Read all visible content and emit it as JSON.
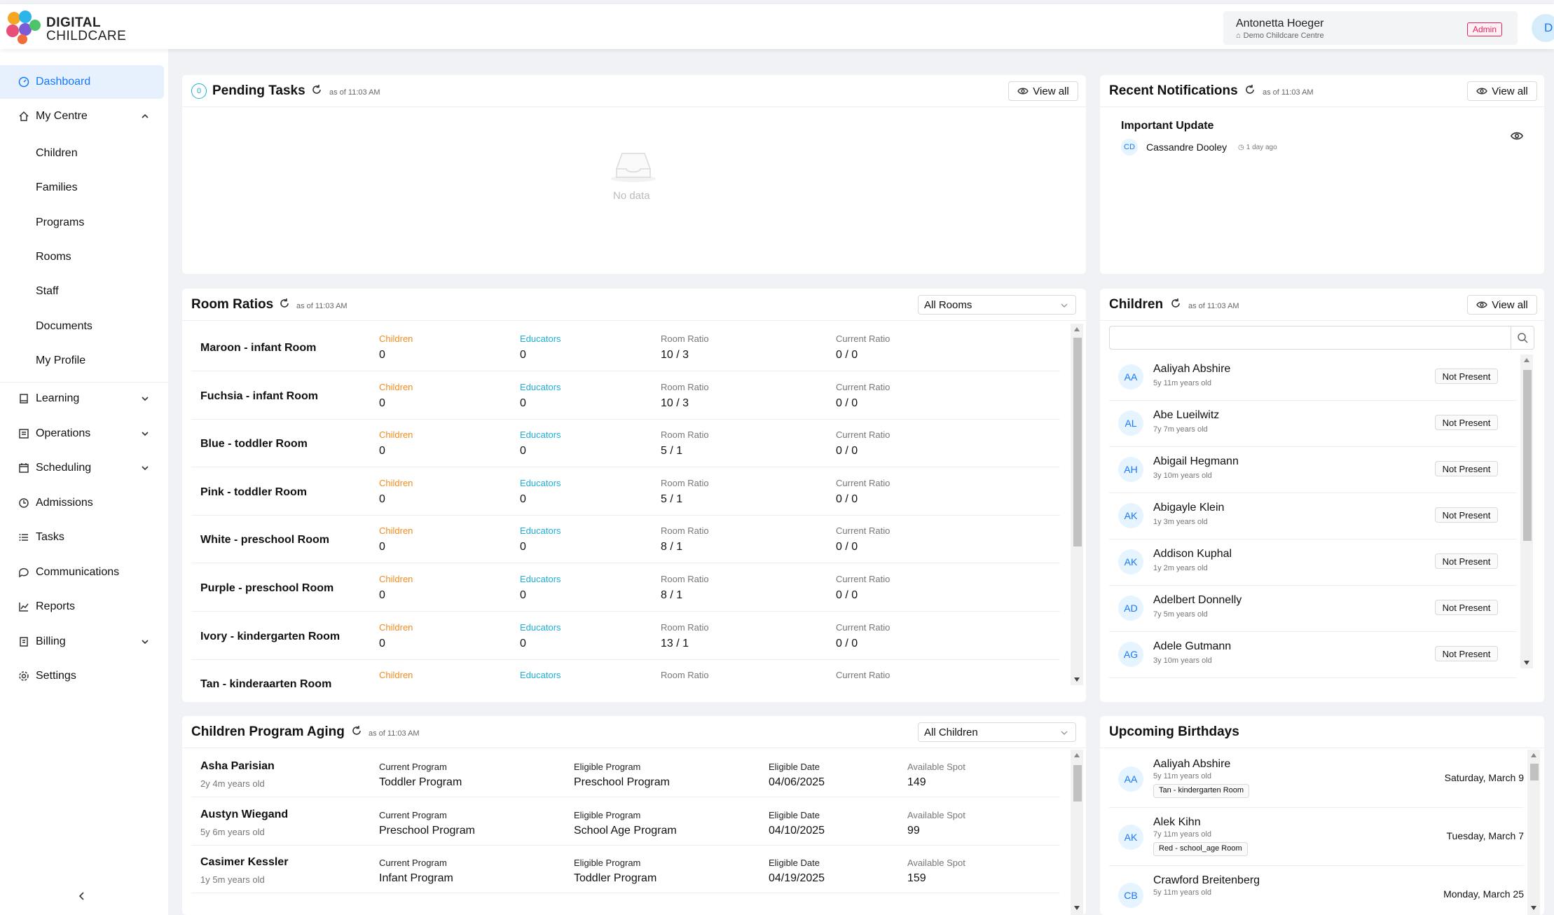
{
  "brand": {
    "line1": "DIGITAL",
    "line2": "CHILDCARE"
  },
  "user": {
    "name": "Antonetta Hoeger",
    "centre": "Demo Childcare Centre",
    "role": "Admin",
    "avatar_initial": "D"
  },
  "sidebar": {
    "items": [
      {
        "label": "Dashboard",
        "icon": "dashboard-icon"
      },
      {
        "label": "My Centre",
        "icon": "home-icon"
      },
      {
        "label": "Learning",
        "icon": "book-icon"
      },
      {
        "label": "Operations",
        "icon": "operations-icon"
      },
      {
        "label": "Scheduling",
        "icon": "calendar-icon"
      },
      {
        "label": "Admissions",
        "icon": "admissions-icon"
      },
      {
        "label": "Tasks",
        "icon": "list-icon"
      },
      {
        "label": "Communications",
        "icon": "chat-icon"
      },
      {
        "label": "Reports",
        "icon": "chart-icon"
      },
      {
        "label": "Billing",
        "icon": "billing-icon"
      },
      {
        "label": "Settings",
        "icon": "settings-icon"
      }
    ],
    "subitems": [
      "Children",
      "Families",
      "Programs",
      "Rooms",
      "Staff",
      "Documents",
      "My Profile"
    ]
  },
  "pending": {
    "title": "Pending Tasks",
    "count": "0",
    "asof": "as of 11:03 AM",
    "view_all": "View all",
    "empty": "No data"
  },
  "notifications": {
    "title": "Recent Notifications",
    "asof": "as of 11:03 AM",
    "view_all": "View all",
    "items": [
      {
        "title": "Important Update",
        "initials": "CD",
        "author": "Cassandre Dooley",
        "time": "1 day ago"
      }
    ]
  },
  "rooms": {
    "title": "Room Ratios",
    "asof": "as of 11:03 AM",
    "filter": "All Rooms",
    "labels": {
      "children": "Children",
      "educators": "Educators",
      "room_ratio": "Room Ratio",
      "current_ratio": "Current Ratio"
    },
    "rows": [
      {
        "name": "Maroon - infant Room",
        "children": "0",
        "educators": "0",
        "room_ratio": "10 / 3",
        "current_ratio": "0 / 0"
      },
      {
        "name": "Fuchsia - infant Room",
        "children": "0",
        "educators": "0",
        "room_ratio": "10 / 3",
        "current_ratio": "0 / 0"
      },
      {
        "name": "Blue - toddler Room",
        "children": "0",
        "educators": "0",
        "room_ratio": "5 / 1",
        "current_ratio": "0 / 0"
      },
      {
        "name": "Pink - toddler Room",
        "children": "0",
        "educators": "0",
        "room_ratio": "5 / 1",
        "current_ratio": "0 / 0"
      },
      {
        "name": "White - preschool Room",
        "children": "0",
        "educators": "0",
        "room_ratio": "8 / 1",
        "current_ratio": "0 / 0"
      },
      {
        "name": "Purple - preschool Room",
        "children": "0",
        "educators": "0",
        "room_ratio": "8 / 1",
        "current_ratio": "0 / 0"
      },
      {
        "name": "Ivory - kindergarten Room",
        "children": "0",
        "educators": "0",
        "room_ratio": "13 / 1",
        "current_ratio": "0 / 0"
      },
      {
        "name": "Tan - kinderaarten Room",
        "children": "",
        "educators": "",
        "room_ratio": "",
        "current_ratio": ""
      }
    ]
  },
  "children": {
    "title": "Children",
    "asof": "as of 11:03 AM",
    "view_all": "View all",
    "search_placeholder": "",
    "rows": [
      {
        "initials": "AA",
        "name": "Aaliyah Abshire",
        "age": "5y 11m years old",
        "status": "Not Present"
      },
      {
        "initials": "AL",
        "name": "Abe Lueilwitz",
        "age": "7y 7m years old",
        "status": "Not Present"
      },
      {
        "initials": "AH",
        "name": "Abigail Hegmann",
        "age": "3y 10m years old",
        "status": "Not Present"
      },
      {
        "initials": "AK",
        "name": "Abigayle Klein",
        "age": "1y 3m years old",
        "status": "Not Present"
      },
      {
        "initials": "AK",
        "name": "Addison Kuphal",
        "age": "1y 2m years old",
        "status": "Not Present"
      },
      {
        "initials": "AD",
        "name": "Adelbert Donnelly",
        "age": "7y 5m years old",
        "status": "Not Present"
      },
      {
        "initials": "AG",
        "name": "Adele Gutmann",
        "age": "3y 10m years old",
        "status": "Not Present"
      }
    ]
  },
  "aging": {
    "title": "Children Program Aging",
    "asof": "as of 11:03 AM",
    "filter": "All Children",
    "labels": {
      "current": "Current Program",
      "eligible": "Eligible Program",
      "date": "Eligible Date",
      "spot": "Available Spot"
    },
    "rows": [
      {
        "name": "Asha Parisian",
        "age": "2y 4m years old",
        "current": "Toddler Program",
        "eligible": "Preschool Program",
        "date": "04/06/2025",
        "spot": "149"
      },
      {
        "name": "Austyn Wiegand",
        "age": "5y 6m years old",
        "current": "Preschool Program",
        "eligible": "School Age Program",
        "date": "04/10/2025",
        "spot": "99"
      },
      {
        "name": "Casimer Kessler",
        "age": "1y 5m years old",
        "current": "Infant Program",
        "eligible": "Toddler Program",
        "date": "04/19/2025",
        "spot": "159"
      }
    ]
  },
  "birthdays": {
    "title": "Upcoming Birthdays",
    "rows": [
      {
        "initials": "AA",
        "name": "Aaliyah Abshire",
        "age": "5y 11m years old",
        "room": "Tan - kindergarten Room",
        "date": "Saturday, March 9"
      },
      {
        "initials": "AK",
        "name": "Alek Kihn",
        "age": "7y 11m years old",
        "room": "Red - school_age Room",
        "date": "Tuesday, March 7"
      },
      {
        "initials": "CB",
        "name": "Crawford Breitenberg",
        "age": "5y 11m years old",
        "room": "",
        "date": "Monday, March 25"
      }
    ]
  },
  "colors": {
    "accent": "#1677ff",
    "orange": "#f08c1e",
    "cyan": "#1eaed8",
    "admin": "#e0245e"
  }
}
